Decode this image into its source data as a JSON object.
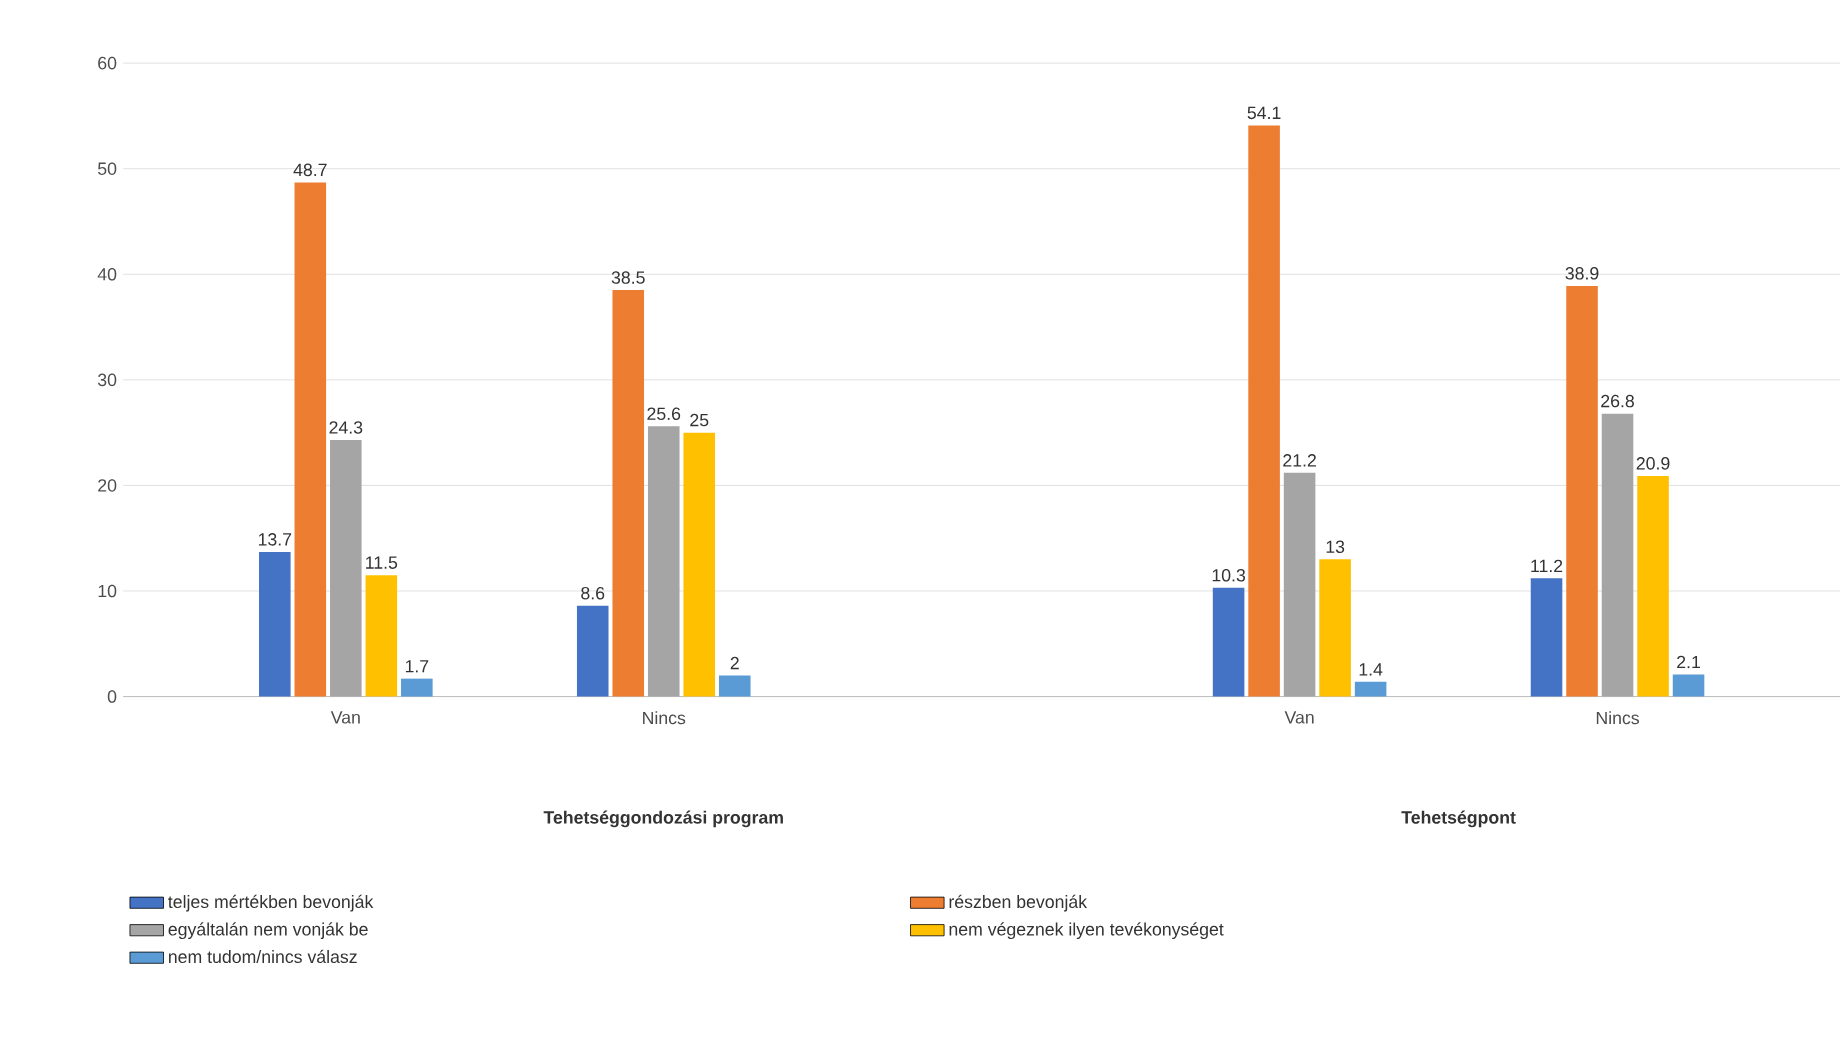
{
  "chart_data": {
    "type": "bar",
    "categories": [
      "Van",
      "Nincs",
      null,
      "Van",
      "Nincs"
    ],
    "series": [
      {
        "name": "teljes mértékben bevonják",
        "color": "#4472c4",
        "values": [
          13.7,
          8.6,
          null,
          10.3,
          11.2
        ]
      },
      {
        "name": "részben bevonják",
        "color": "#ed7d31",
        "values": [
          48.7,
          38.5,
          null,
          54.1,
          38.9
        ]
      },
      {
        "name": "egyáltalán nem vonják be",
        "color": "#a5a5a5",
        "values": [
          24.3,
          25.6,
          null,
          21.2,
          26.8
        ]
      },
      {
        "name": "nem végeznek ilyen tevékonységet",
        "color": "#ffc000",
        "values": [
          11.5,
          25,
          null,
          13,
          20.9
        ]
      },
      {
        "name": "nem tudom/nincs válasz",
        "color": "#5b9bd5",
        "values": [
          1.7,
          2,
          null,
          1.4,
          2.1
        ]
      }
    ],
    "annotations": [
      "Tehetséggondozási program",
      "Tehetségpont"
    ],
    "ylim": [
      0,
      60
    ],
    "yticks": [
      0,
      10,
      20,
      30,
      40,
      50,
      60
    ],
    "grid": "y",
    "data_labels": true,
    "legend": "bottom"
  }
}
